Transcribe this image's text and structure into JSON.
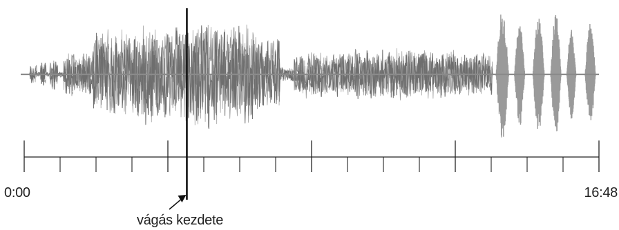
{
  "timeline": {
    "start_time": "0:00",
    "end_time": "16:48",
    "major_tick_count": 5,
    "minor_ticks_per_major": 4
  },
  "cut_marker": {
    "label": "vágás kezdete",
    "position_fraction": 0.283
  },
  "waveform": {
    "segments": [
      {
        "from": 0.0,
        "to": 0.01,
        "amp": 0.0
      },
      {
        "from": 0.01,
        "to": 0.022,
        "amp": 0.18
      },
      {
        "from": 0.022,
        "to": 0.028,
        "amp": 0.04
      },
      {
        "from": 0.028,
        "to": 0.038,
        "amp": 0.22
      },
      {
        "from": 0.038,
        "to": 0.045,
        "amp": 0.04
      },
      {
        "from": 0.045,
        "to": 0.058,
        "amp": 0.28
      },
      {
        "from": 0.058,
        "to": 0.068,
        "amp": 0.05
      },
      {
        "from": 0.068,
        "to": 0.12,
        "amp": 0.35
      },
      {
        "from": 0.12,
        "to": 0.19,
        "amp": 0.72
      },
      {
        "from": 0.19,
        "to": 0.28,
        "amp": 0.8
      },
      {
        "from": 0.28,
        "to": 0.33,
        "amp": 0.9
      },
      {
        "from": 0.33,
        "to": 0.4,
        "amp": 0.82
      },
      {
        "from": 0.4,
        "to": 0.445,
        "amp": 0.62
      },
      {
        "from": 0.445,
        "to": 0.47,
        "amp": 0.12
      },
      {
        "from": 0.47,
        "to": 0.56,
        "amp": 0.38
      },
      {
        "from": 0.56,
        "to": 0.65,
        "amp": 0.42
      },
      {
        "from": 0.65,
        "to": 0.75,
        "amp": 0.4
      },
      {
        "from": 0.75,
        "to": 0.815,
        "amp": 0.35
      },
      {
        "from": 0.815,
        "to": 1.0,
        "amp": 0.0
      }
    ],
    "bursts": [
      {
        "center": 0.832,
        "width": 0.022,
        "amp": 1.0
      },
      {
        "center": 0.862,
        "width": 0.018,
        "amp": 0.8
      },
      {
        "center": 0.895,
        "width": 0.02,
        "amp": 0.88
      },
      {
        "center": 0.925,
        "width": 0.018,
        "amp": 0.95
      },
      {
        "center": 0.952,
        "width": 0.016,
        "amp": 0.7
      },
      {
        "center": 0.985,
        "width": 0.018,
        "amp": 0.78
      }
    ],
    "colors": {
      "wave": "#6f6f6f",
      "burst": "#9a9a9a",
      "baseline": "#8a8a8a",
      "marker": "#111111",
      "ruler": "#222222"
    }
  }
}
